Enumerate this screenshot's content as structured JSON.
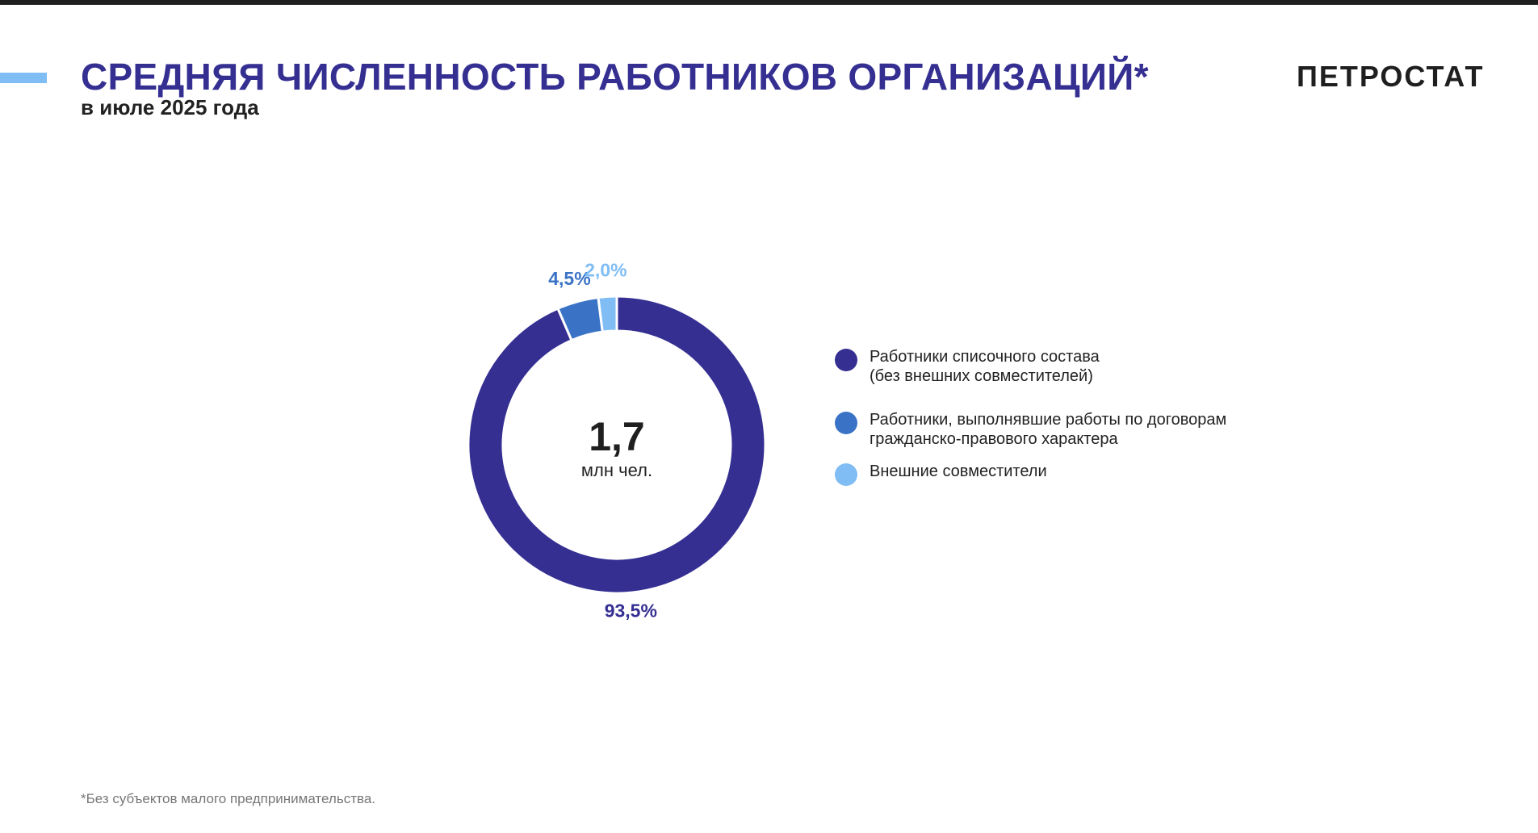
{
  "header": {
    "title": "СРЕДНЯЯ ЧИСЛЕННОСТЬ РАБОТНИКОВ ОРГАНИЗАЦИЙ*",
    "subtitle": "в июле 2025 года",
    "logo": "ПЕТРОСТАТ"
  },
  "colors": {
    "title": "#352f92",
    "accent": "#80bdf5"
  },
  "chart_data": {
    "type": "pie",
    "variant": "donut",
    "total_value": "1,7",
    "total_unit": "млн чел.",
    "slices": [
      {
        "value": 93.5,
        "label": "93,5%",
        "color": "#352f92",
        "legend": [
          "Работники списочного состава",
          "(без внешних совместителей)"
        ]
      },
      {
        "value": 4.5,
        "label": "4,5%",
        "color": "#3a73c6",
        "legend": [
          "Работники, выполнявшие работы по договорам",
          "гражданско-правового характера"
        ]
      },
      {
        "value": 2.0,
        "label": "2,0%",
        "color": "#80bdf5",
        "legend": [
          "Внешние совместители"
        ]
      }
    ],
    "legend_position": "right"
  },
  "footnote": "*Без субъектов малого предпринимательства."
}
